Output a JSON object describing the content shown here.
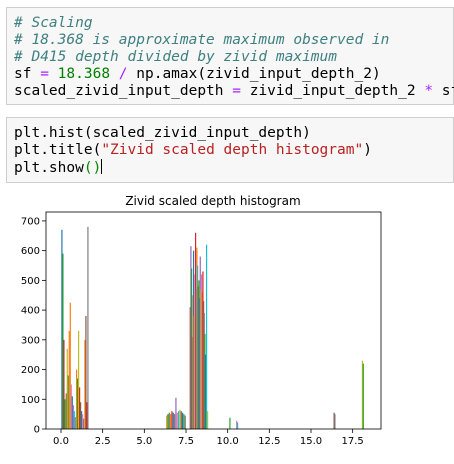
{
  "cells": [
    {
      "lines": [
        [
          {
            "t": "# Scaling",
            "c": "cm"
          }
        ],
        [
          {
            "t": "# 18.368 is approximate maximum observed in",
            "c": "cm"
          }
        ],
        [
          {
            "t": "# D415 depth divided by zivid maximum",
            "c": "cm"
          }
        ],
        [
          {
            "t": "sf ",
            "c": ""
          },
          {
            "t": "=",
            "c": "op"
          },
          {
            "t": " ",
            "c": ""
          },
          {
            "t": "18.368",
            "c": "num"
          },
          {
            "t": " ",
            "c": ""
          },
          {
            "t": "/",
            "c": "op"
          },
          {
            "t": " np.amax(zivid_input_depth_2)",
            "c": ""
          }
        ],
        [
          {
            "t": "scaled_zivid_input_depth ",
            "c": ""
          },
          {
            "t": "=",
            "c": "op"
          },
          {
            "t": " zivid_input_depth_2 ",
            "c": ""
          },
          {
            "t": "*",
            "c": "op"
          },
          {
            "t": " sf",
            "c": ""
          }
        ]
      ]
    },
    {
      "lines": [
        [
          {
            "t": "plt.hist(scaled_zivid_input_depth)",
            "c": ""
          }
        ],
        [
          {
            "t": "plt.title(",
            "c": ""
          },
          {
            "t": "\"Zivid scaled depth histogram\"",
            "c": "str"
          },
          {
            "t": ")",
            "c": ""
          }
        ],
        [
          {
            "t": "plt.show",
            "c": ""
          },
          {
            "t": "()",
            "c": "par"
          }
        ]
      ]
    }
  ],
  "chart_data": {
    "type": "bar",
    "title": "Zivid scaled depth histogram",
    "xlabel": "",
    "ylabel": "",
    "xlim": [
      -0.9,
      19.2
    ],
    "ylim": [
      0,
      730
    ],
    "xticks": [
      0.0,
      2.5,
      5.0,
      7.5,
      10.0,
      12.5,
      15.0,
      17.5
    ],
    "xtick_labels": [
      "0.0",
      "2.5",
      "5.0",
      "7.5",
      "10.0",
      "12.5",
      "15.0",
      "17.5"
    ],
    "yticks": [
      0,
      100,
      200,
      300,
      400,
      500,
      600,
      700
    ],
    "ytick_labels": [
      "0",
      "100",
      "200",
      "300",
      "400",
      "500",
      "600",
      "700"
    ],
    "colors": [
      "#1f77b4",
      "#ff7f0e",
      "#2ca02c",
      "#d62728",
      "#9467bd",
      "#8c564b",
      "#e377c2",
      "#7f7f7f",
      "#bcbd22",
      "#17becf"
    ],
    "bars": [
      {
        "x": 0.02,
        "h": 670,
        "c": 0
      },
      {
        "x": 0.08,
        "h": 590,
        "c": 2
      },
      {
        "x": 0.14,
        "h": 300,
        "c": 3
      },
      {
        "x": 0.2,
        "h": 100,
        "c": 2
      },
      {
        "x": 0.28,
        "h": 120,
        "c": 5
      },
      {
        "x": 0.34,
        "h": 270,
        "c": 8
      },
      {
        "x": 0.4,
        "h": 180,
        "c": 2
      },
      {
        "x": 0.46,
        "h": 330,
        "c": 1
      },
      {
        "x": 0.52,
        "h": 425,
        "c": 1
      },
      {
        "x": 0.58,
        "h": 150,
        "c": 6
      },
      {
        "x": 0.64,
        "h": 110,
        "c": 0
      },
      {
        "x": 0.7,
        "h": 80,
        "c": 4
      },
      {
        "x": 0.76,
        "h": 60,
        "c": 9
      },
      {
        "x": 0.82,
        "h": 40,
        "c": 7
      },
      {
        "x": 0.9,
        "h": 200,
        "c": 1
      },
      {
        "x": 0.96,
        "h": 170,
        "c": 2
      },
      {
        "x": 1.02,
        "h": 330,
        "c": 8
      },
      {
        "x": 1.08,
        "h": 140,
        "c": 3
      },
      {
        "x": 1.14,
        "h": 90,
        "c": 5
      },
      {
        "x": 1.2,
        "h": 60,
        "c": 0
      },
      {
        "x": 1.26,
        "h": 50,
        "c": 6
      },
      {
        "x": 1.32,
        "h": 35,
        "c": 7
      },
      {
        "x": 1.4,
        "h": 300,
        "c": 1
      },
      {
        "x": 1.46,
        "h": 380,
        "c": 5
      },
      {
        "x": 1.52,
        "h": 90,
        "c": 3
      },
      {
        "x": 1.58,
        "h": 680,
        "c": 7
      },
      {
        "x": 6.3,
        "h": 45,
        "c": 8
      },
      {
        "x": 6.38,
        "h": 50,
        "c": 5
      },
      {
        "x": 6.46,
        "h": 55,
        "c": 2
      },
      {
        "x": 6.54,
        "h": 50,
        "c": 1
      },
      {
        "x": 6.62,
        "h": 60,
        "c": 3
      },
      {
        "x": 6.7,
        "h": 55,
        "c": 0
      },
      {
        "x": 6.78,
        "h": 50,
        "c": 7
      },
      {
        "x": 6.86,
        "h": 105,
        "c": 4
      },
      {
        "x": 6.94,
        "h": 55,
        "c": 6
      },
      {
        "x": 7.02,
        "h": 60,
        "c": 9
      },
      {
        "x": 7.1,
        "h": 65,
        "c": 8
      },
      {
        "x": 7.18,
        "h": 60,
        "c": 5
      },
      {
        "x": 7.26,
        "h": 55,
        "c": 0
      },
      {
        "x": 7.34,
        "h": 50,
        "c": 2
      },
      {
        "x": 7.42,
        "h": 45,
        "c": 7
      },
      {
        "x": 7.72,
        "h": 410,
        "c": 3
      },
      {
        "x": 7.76,
        "h": 615,
        "c": 4
      },
      {
        "x": 7.8,
        "h": 540,
        "c": 2
      },
      {
        "x": 7.84,
        "h": 310,
        "c": 5
      },
      {
        "x": 7.88,
        "h": 450,
        "c": 1
      },
      {
        "x": 7.92,
        "h": 600,
        "c": 0
      },
      {
        "x": 7.96,
        "h": 380,
        "c": 8
      },
      {
        "x": 8.0,
        "h": 520,
        "c": 6
      },
      {
        "x": 8.04,
        "h": 660,
        "c": 3
      },
      {
        "x": 8.08,
        "h": 470,
        "c": 7
      },
      {
        "x": 8.12,
        "h": 610,
        "c": 1
      },
      {
        "x": 8.16,
        "h": 550,
        "c": 9
      },
      {
        "x": 8.2,
        "h": 480,
        "c": 5
      },
      {
        "x": 8.24,
        "h": 500,
        "c": 2
      },
      {
        "x": 8.28,
        "h": 440,
        "c": 0
      },
      {
        "x": 8.32,
        "h": 580,
        "c": 4
      },
      {
        "x": 8.36,
        "h": 470,
        "c": 8
      },
      {
        "x": 8.4,
        "h": 520,
        "c": 6
      },
      {
        "x": 8.44,
        "h": 460,
        "c": 1
      },
      {
        "x": 8.48,
        "h": 530,
        "c": 3
      },
      {
        "x": 8.52,
        "h": 430,
        "c": 5
      },
      {
        "x": 8.56,
        "h": 390,
        "c": 7
      },
      {
        "x": 8.6,
        "h": 320,
        "c": 2
      },
      {
        "x": 8.64,
        "h": 250,
        "c": 0
      },
      {
        "x": 8.7,
        "h": 620,
        "c": 9
      },
      {
        "x": 8.76,
        "h": 60,
        "c": 8
      },
      {
        "x": 10.1,
        "h": 38,
        "c": 2
      },
      {
        "x": 10.5,
        "h": 28,
        "c": 6
      },
      {
        "x": 10.56,
        "h": 22,
        "c": 9
      },
      {
        "x": 16.35,
        "h": 55,
        "c": 5
      },
      {
        "x": 16.4,
        "h": 50,
        "c": 7
      },
      {
        "x": 18.05,
        "h": 230,
        "c": 8
      },
      {
        "x": 18.1,
        "h": 220,
        "c": 2
      }
    ]
  }
}
